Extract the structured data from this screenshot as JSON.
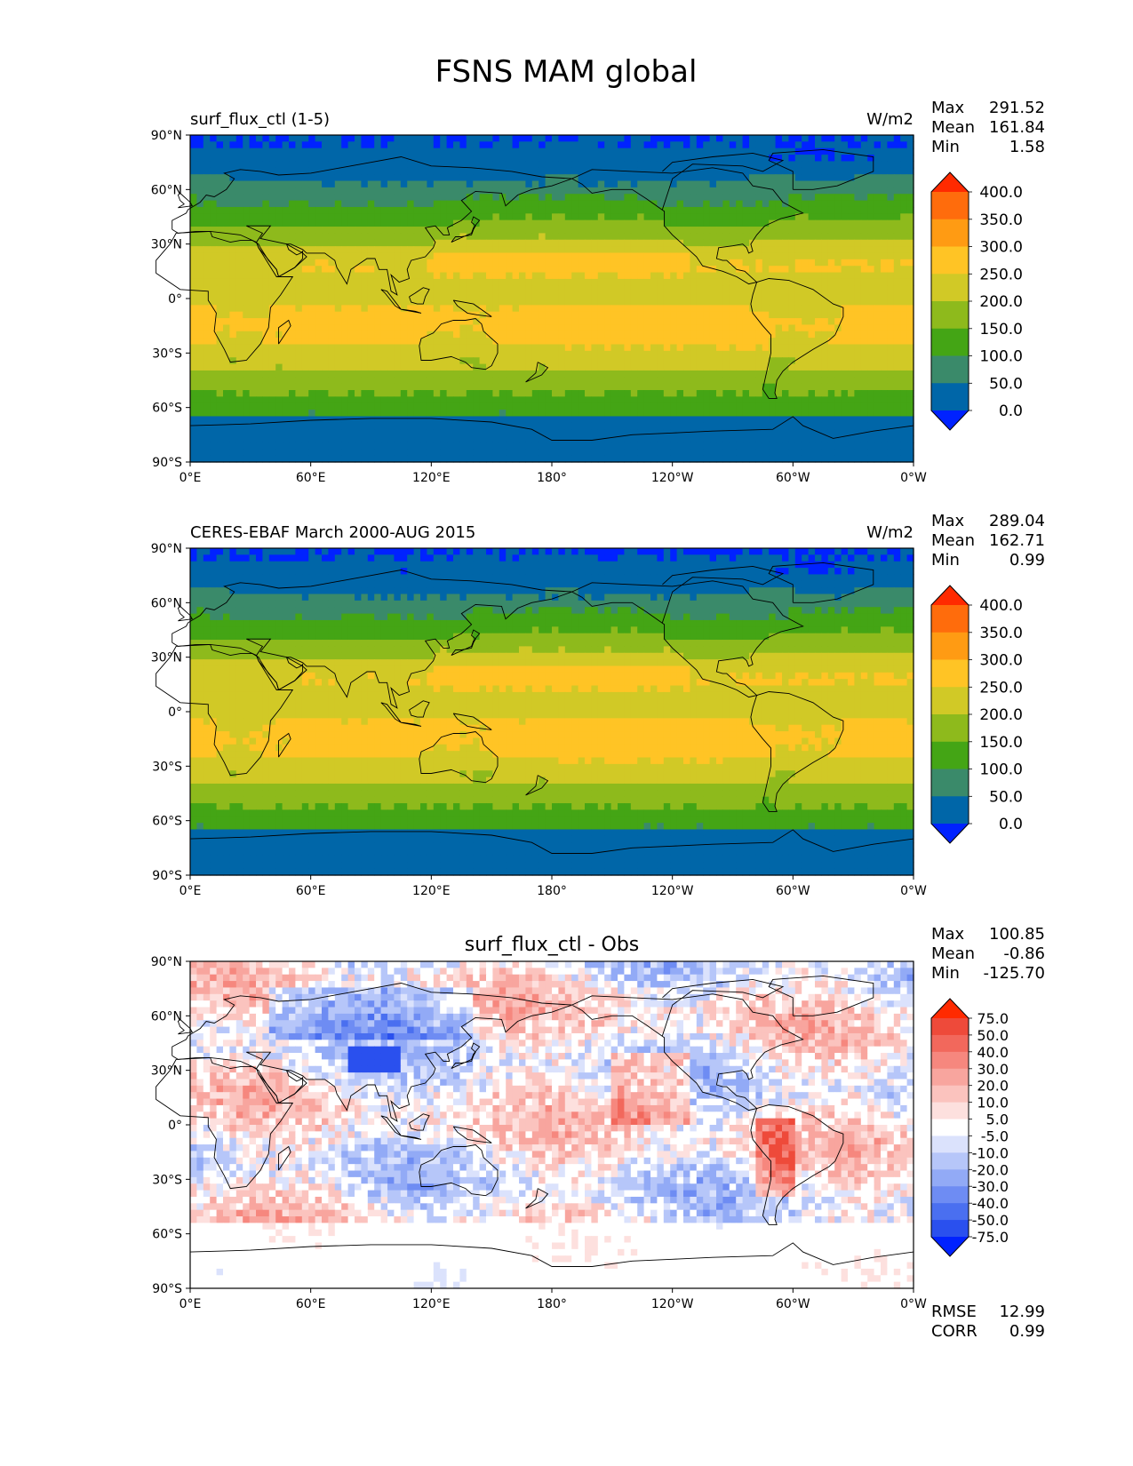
{
  "figure": {
    "title": "FSNS MAM global"
  },
  "axes": {
    "x_ticks": [
      "0°E",
      "60°E",
      "120°E",
      "180°",
      "120°W",
      "60°W",
      "0°W"
    ],
    "y_ticks": [
      "90°N",
      "60°N",
      "30°N",
      "0°",
      "30°S",
      "60°S",
      "90°S"
    ]
  },
  "panels": [
    {
      "id": "test",
      "title_left": "surf_flux_ctl (1-5)",
      "title_center": "",
      "units": "W/m2",
      "stats": [
        [
          "Max",
          "291.52"
        ],
        [
          "Mean",
          "161.84"
        ],
        [
          "Min",
          "1.58"
        ]
      ],
      "colorbar": {
        "levels": [
          "0.0",
          "50.0",
          "100.0",
          "150.0",
          "200.0",
          "250.0",
          "300.0",
          "350.0",
          "400.0"
        ],
        "colors": [
          "#0022ff",
          "#0066a8",
          "#3a8a6a",
          "#44a515",
          "#8eba1c",
          "#d1c926",
          "#ffc425",
          "#ff9b13",
          "#ff6c0c",
          "#ff2a00"
        ]
      },
      "field": "fsns_model"
    },
    {
      "id": "ref",
      "title_left": "CERES-EBAF March 2000-AUG 2015",
      "title_center": "",
      "units": "W/m2",
      "stats": [
        [
          "Max",
          "289.04"
        ],
        [
          "Mean",
          "162.71"
        ],
        [
          "Min",
          "0.99"
        ]
      ],
      "colorbar": {
        "levels": [
          "0.0",
          "50.0",
          "100.0",
          "150.0",
          "200.0",
          "250.0",
          "300.0",
          "350.0",
          "400.0"
        ],
        "colors": [
          "#0022ff",
          "#0066a8",
          "#3a8a6a",
          "#44a515",
          "#8eba1c",
          "#d1c926",
          "#ffc425",
          "#ff9b13",
          "#ff6c0c",
          "#ff2a00"
        ]
      },
      "field": "fsns_obs"
    },
    {
      "id": "diff",
      "title_left": "",
      "title_center": "surf_flux_ctl - Obs",
      "units": "",
      "stats": [
        [
          "Max",
          "100.85"
        ],
        [
          "Mean",
          "-0.86"
        ],
        [
          "Min",
          "-125.70"
        ]
      ],
      "colorbar": {
        "levels": [
          "-75.0",
          "-50.0",
          "-40.0",
          "-30.0",
          "-20.0",
          "-10.0",
          "-5.0",
          "5.0",
          "10.0",
          "20.0",
          "30.0",
          "40.0",
          "50.0",
          "75.0"
        ],
        "colors": [
          "#0022ff",
          "#2a50ee",
          "#4a6ff0",
          "#6e8cf3",
          "#92aaf6",
          "#b6c6f9",
          "#dbe2fc",
          "#ffffff",
          "#fde0de",
          "#fbc3be",
          "#f8a59e",
          "#f6877e",
          "#f2685c",
          "#ee4a3a",
          "#ff2a00"
        ]
      },
      "field": "fsns_diff",
      "error_stats": [
        [
          "RMSE",
          "12.99"
        ],
        [
          "CORR",
          "0.99"
        ]
      ]
    }
  ],
  "palette": {
    "ocean_background": "#0066a8",
    "coastline": "#000000"
  }
}
